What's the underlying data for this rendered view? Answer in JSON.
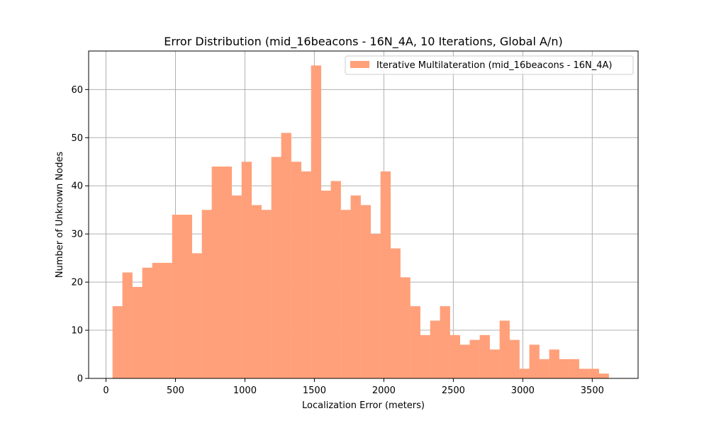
{
  "chart_data": {
    "type": "bar",
    "title": "Error Distribution (mid_16beacons - 16N_4A, 10 Iterations, Global A/n)",
    "xlabel": "Localization Error (meters)",
    "ylabel": "Number of Unknown Nodes",
    "xlim": [
      -125,
      3830
    ],
    "ylim": [
      0,
      68
    ],
    "xticks": [
      0,
      500,
      1000,
      1500,
      2000,
      2500,
      3000,
      3500
    ],
    "yticks": [
      0,
      10,
      20,
      30,
      40,
      50,
      60
    ],
    "grid": true,
    "legend_position": "top-right",
    "bin_width": 71.4,
    "bar_color": "#FFA07A",
    "series": [
      {
        "name": "Iterative Multilateration (mid_16beacons - 16N_4A)",
        "x": [
          47,
          118,
          190,
          261,
          333,
          404,
          476,
          547,
          618,
          690,
          761,
          833,
          904,
          976,
          1047,
          1118,
          1190,
          1261,
          1333,
          1404,
          1476,
          1547,
          1618,
          1690,
          1761,
          1833,
          1904,
          1976,
          2047,
          2118,
          2190,
          2261,
          2333,
          2404,
          2476,
          2547,
          2618,
          2690,
          2761,
          2833,
          2904,
          2976,
          3047,
          3118,
          3190,
          3261,
          3333,
          3404,
          3476,
          3547
        ],
        "values": [
          15,
          22,
          19,
          23,
          24,
          24,
          34,
          34,
          26,
          35,
          44,
          44,
          38,
          45,
          36,
          35,
          46,
          51,
          45,
          43,
          65,
          39,
          41,
          35,
          38,
          36,
          30,
          43,
          27,
          21,
          15,
          9,
          12,
          15,
          9,
          7,
          8,
          9,
          6,
          12,
          8,
          2,
          7,
          4,
          6,
          4,
          4,
          2,
          2,
          1
        ]
      }
    ]
  }
}
